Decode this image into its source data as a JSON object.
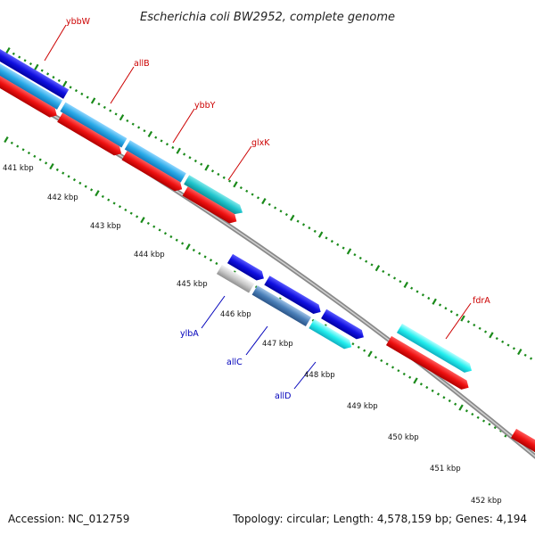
{
  "title": "Escherichia coli BW2952, complete genome",
  "footer": {
    "accession": "Accession: NC_012759",
    "summary": "Topology: circular; Length: 4,578,159 bp; Genes: 4,194"
  },
  "colors": {
    "forward_label": "#cc0000",
    "reverse_label": "#0000bb",
    "backbone": "#8a8a8a",
    "tick": "#1a8a1a",
    "cds_red": "#ee1111",
    "cds_blue": "#1010e0",
    "cds_sky": "#2aaae8",
    "cds_teal": "#1fc4cc",
    "cds_cyan": "#22eeee",
    "cds_steel": "#4a7fb8",
    "cds_gray": "#c8c8c8"
  },
  "tick_labels": [
    "441 kbp",
    "442 kbp",
    "443 kbp",
    "444 kbp",
    "445 kbp",
    "446 kbp",
    "447 kbp",
    "448 kbp",
    "449 kbp",
    "450 kbp",
    "451 kbp",
    "452 kbp"
  ],
  "forward_genes": [
    "ybbW",
    "allB",
    "ybbY",
    "glxK",
    "fdrA"
  ],
  "reverse_genes": [
    "ylbA",
    "allC",
    "allD"
  ]
}
